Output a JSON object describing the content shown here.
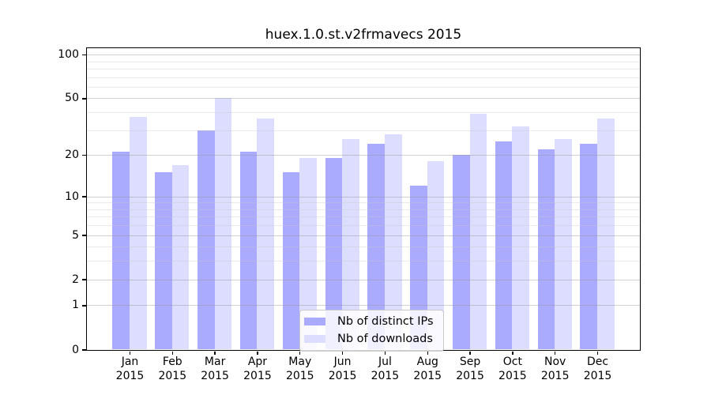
{
  "chart_data": {
    "type": "bar",
    "title": "huex.1.0.st.v2frmavecs 2015",
    "year": "2015",
    "categories": [
      "Jan",
      "Feb",
      "Mar",
      "Apr",
      "May",
      "Jun",
      "Jul",
      "Aug",
      "Sep",
      "Oct",
      "Nov",
      "Dec"
    ],
    "series": [
      {
        "name": "Nb of distinct IPs",
        "color": "#aaaaff",
        "values": [
          21,
          15,
          30,
          21,
          15,
          19,
          24,
          12,
          20,
          25,
          22,
          24
        ]
      },
      {
        "name": "Nb of downloads",
        "color": "#ddddff",
        "values": [
          37,
          17,
          50,
          36,
          19,
          26,
          28,
          18,
          39,
          32,
          26,
          36
        ]
      }
    ],
    "y_axis": {
      "scale": "log1p",
      "ticks": [
        0,
        1,
        2,
        5,
        10,
        20,
        50,
        100
      ],
      "minor_ticks": [
        3,
        4,
        6,
        7,
        8,
        9,
        30,
        40,
        60,
        70,
        80,
        90
      ],
      "range_max": 100
    },
    "grid": "on, drawn above bars",
    "legend_position": "bottom-center",
    "colors": {
      "spine": "#000000",
      "grid_major": "#c8c8c8",
      "grid_minor": "#e6e6e6",
      "background": "#ffffff"
    }
  }
}
